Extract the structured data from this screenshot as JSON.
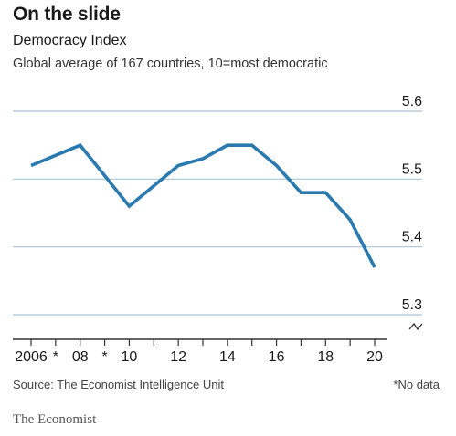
{
  "header": {
    "title": "On the slide",
    "subtitle": "Democracy Index",
    "description": "Global average of 167 countries, 10=most democratic"
  },
  "footer": {
    "source": "Source: The Economist Intelligence Unit",
    "note": "*No data",
    "brand": "The Economist"
  },
  "colors": {
    "line": "#2a7ab0",
    "grid": "#a9c4d6",
    "axis": "#333333",
    "text": "#1a1a1a"
  },
  "chart_data": {
    "type": "line",
    "x": [
      2006,
      2007,
      2008,
      2009,
      2010,
      2011,
      2012,
      2013,
      2014,
      2015,
      2016,
      2017,
      2018,
      2019,
      2020
    ],
    "series": [
      {
        "values": [
          5.52,
          5.535,
          5.55,
          5.505,
          5.46,
          5.49,
          5.52,
          5.53,
          5.55,
          5.55,
          5.52,
          5.48,
          5.48,
          5.44,
          5.37
        ]
      }
    ],
    "x_tick_labels": [
      {
        "x": 2006,
        "label": "2006"
      },
      {
        "x": 2007,
        "label": "*"
      },
      {
        "x": 2008,
        "label": "08"
      },
      {
        "x": 2009,
        "label": "*"
      },
      {
        "x": 2010,
        "label": "10"
      },
      {
        "x": 2012,
        "label": "12"
      },
      {
        "x": 2014,
        "label": "14"
      },
      {
        "x": 2016,
        "label": "16"
      },
      {
        "x": 2018,
        "label": "18"
      },
      {
        "x": 2020,
        "label": "20"
      }
    ],
    "y_ticks": [
      5.3,
      5.4,
      5.5,
      5.6
    ],
    "y_tick_labels": [
      "5.3",
      "5.4",
      "5.5",
      "5.6"
    ],
    "xlim": [
      2006,
      2020
    ],
    "ylim": [
      5.3,
      5.6
    ],
    "y_axis_break": true,
    "grid": true,
    "title": "On the slide",
    "subtitle": "Democracy Index"
  }
}
